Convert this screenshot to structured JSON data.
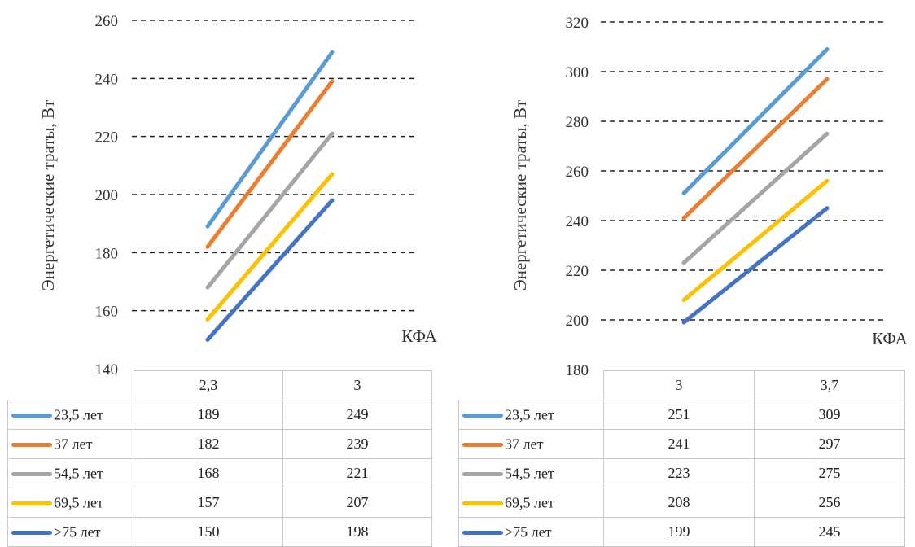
{
  "chart_data": [
    {
      "type": "line",
      "title": "",
      "xlabel": "КФА",
      "ylabel": "Энергетические траты, Вт",
      "ylim": [
        140,
        260
      ],
      "yticks": [
        140,
        160,
        180,
        200,
        220,
        240,
        260
      ],
      "grid": true,
      "legend": "data-table",
      "categories": [
        "2,3",
        "3"
      ],
      "series": [
        {
          "name": "23,5 лет",
          "color": "#5b9bd5",
          "values": [
            189,
            249
          ]
        },
        {
          "name": "37 лет",
          "color": "#ed7d31",
          "values": [
            182,
            239
          ]
        },
        {
          "name": "54,5 лет",
          "color": "#a5a5a5",
          "values": [
            168,
            221
          ]
        },
        {
          "name": "69,5 лет",
          "color": "#ffc000",
          "values": [
            157,
            207
          ]
        },
        {
          "name": ">75 лет",
          "color": "#4472c4",
          "values": [
            150,
            198
          ]
        }
      ]
    },
    {
      "type": "line",
      "title": "",
      "xlabel": "КФА",
      "ylabel": "Энергетические траты, Вт",
      "ylim": [
        180,
        320
      ],
      "yticks": [
        180,
        200,
        220,
        240,
        260,
        280,
        300,
        320
      ],
      "grid": true,
      "legend": "data-table",
      "categories": [
        "3",
        "3,7"
      ],
      "series": [
        {
          "name": "23,5 лет",
          "color": "#5b9bd5",
          "values": [
            251,
            309
          ]
        },
        {
          "name": "37 лет",
          "color": "#ed7d31",
          "values": [
            241,
            297
          ]
        },
        {
          "name": "54,5 лет",
          "color": "#a5a5a5",
          "values": [
            223,
            275
          ]
        },
        {
          "name": "69,5 лет",
          "color": "#ffc000",
          "values": [
            208,
            256
          ]
        },
        {
          "name": ">75 лет",
          "color": "#4472c4",
          "values": [
            199,
            245
          ]
        }
      ]
    }
  ]
}
